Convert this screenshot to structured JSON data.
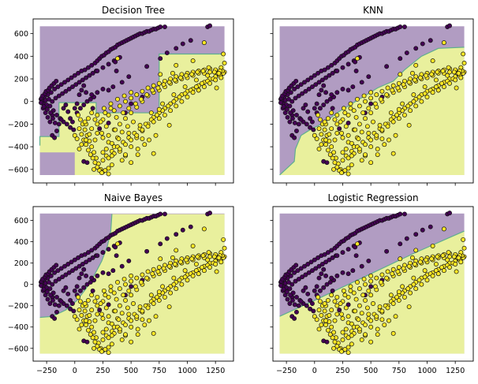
{
  "chart_data": [
    {
      "type": "scatter",
      "title": "Decision Tree",
      "xlim": [
        -370,
        1410
      ],
      "ylim": [
        -720,
        730
      ],
      "show_x_tick_labels": false,
      "show_y_tick_labels": true,
      "region_boundary": [
        [
          -310,
          -390
        ],
        [
          -310,
          -310
        ],
        [
          -140,
          -310
        ],
        [
          -140,
          -10
        ],
        [
          190,
          -10
        ],
        [
          190,
          -100
        ],
        [
          750,
          -100
        ],
        [
          750,
          420
        ],
        [
          1330,
          420
        ]
      ],
      "region_extra": [
        [
          0,
          -650
        ],
        [
          0,
          -450
        ],
        [
          -310,
          -450
        ],
        [
          -310,
          -650
        ]
      ]
    },
    {
      "type": "scatter",
      "title": "KNN",
      "xlim": [
        -370,
        1410
      ],
      "ylim": [
        -720,
        730
      ],
      "show_x_tick_labels": false,
      "show_y_tick_labels": false,
      "region_boundary": [
        [
          -310,
          -650
        ],
        [
          -180,
          -530
        ],
        [
          -170,
          -420
        ],
        [
          -120,
          -300
        ],
        [
          -40,
          -250
        ],
        [
          100,
          -180
        ],
        [
          200,
          -100
        ],
        [
          330,
          -20
        ],
        [
          430,
          40
        ],
        [
          560,
          120
        ],
        [
          700,
          180
        ],
        [
          800,
          280
        ],
        [
          950,
          400
        ],
        [
          1100,
          470
        ],
        [
          1330,
          480
        ]
      ]
    },
    {
      "type": "scatter",
      "title": "Naive Bayes",
      "xlim": [
        -370,
        1410
      ],
      "ylim": [
        -720,
        730
      ],
      "show_x_tick_labels": true,
      "show_y_tick_labels": true,
      "region_boundary": [
        [
          -310,
          -310
        ],
        [
          -200,
          -300
        ],
        [
          -80,
          -240
        ],
        [
          20,
          -150
        ],
        [
          100,
          -40
        ],
        [
          170,
          80
        ],
        [
          240,
          220
        ],
        [
          290,
          360
        ],
        [
          320,
          500
        ],
        [
          330,
          660
        ]
      ]
    },
    {
      "type": "scatter",
      "title": "Logistic Regression",
      "xlim": [
        -370,
        1410
      ],
      "ylim": [
        -720,
        730
      ],
      "show_x_tick_labels": true,
      "show_y_tick_labels": false,
      "region_boundary": [
        [
          -310,
          -300
        ],
        [
          0,
          -150
        ],
        [
          300,
          0
        ],
        [
          600,
          150
        ],
        [
          900,
          300
        ],
        [
          1200,
          440
        ],
        [
          1330,
          500
        ]
      ]
    }
  ],
  "shared": {
    "x_ticks": [
      -250,
      0,
      250,
      500,
      750,
      1000,
      1250
    ],
    "x_tick_labels": [
      "−250",
      "0",
      "250",
      "500",
      "750",
      "1000",
      "1250"
    ],
    "y_ticks": [
      -600,
      -400,
      -200,
      0,
      200,
      400,
      600
    ],
    "y_tick_labels": [
      "−600",
      "−400",
      "−200",
      "0",
      "200",
      "400",
      "600"
    ],
    "class_colors": {
      "class_0": "#440154",
      "class_1": "#fde725"
    },
    "region_colors": {
      "class_0": "#b19cc2",
      "class_1": "#e9f09d"
    },
    "boundary_color": "#5fae8f",
    "points_class_0": [
      [
        -300,
        20
      ],
      [
        -290,
        0
      ],
      [
        -280,
        -20
      ],
      [
        -270,
        40
      ],
      [
        -260,
        10
      ],
      [
        -250,
        -30
      ],
      [
        -240,
        60
      ],
      [
        -230,
        20
      ],
      [
        -220,
        -40
      ],
      [
        -210,
        80
      ],
      [
        -200,
        0
      ],
      [
        -190,
        -80
      ],
      [
        -180,
        110
      ],
      [
        -170,
        30
      ],
      [
        -160,
        -120
      ],
      [
        -150,
        130
      ],
      [
        -140,
        50
      ],
      [
        -130,
        -150
      ],
      [
        -120,
        150
      ],
      [
        -110,
        70
      ],
      [
        -100,
        -180
      ],
      [
        -90,
        170
      ],
      [
        -80,
        90
      ],
      [
        -70,
        -200
      ],
      [
        -60,
        190
      ],
      [
        -50,
        110
      ],
      [
        -40,
        -230
      ],
      [
        -30,
        210
      ],
      [
        -20,
        130
      ],
      [
        -10,
        -250
      ],
      [
        0,
        230
      ],
      [
        10,
        150
      ],
      [
        20,
        -100
      ],
      [
        30,
        250
      ],
      [
        40,
        170
      ],
      [
        50,
        -60
      ],
      [
        60,
        270
      ],
      [
        70,
        190
      ],
      [
        80,
        -30
      ],
      [
        90,
        280
      ],
      [
        100,
        210
      ],
      [
        110,
        0
      ],
      [
        120,
        300
      ],
      [
        130,
        230
      ],
      [
        140,
        20
      ],
      [
        150,
        320
      ],
      [
        160,
        250
      ],
      [
        170,
        40
      ],
      [
        180,
        340
      ],
      [
        190,
        270
      ],
      [
        200,
        360
      ],
      [
        220,
        380
      ],
      [
        240,
        400
      ],
      [
        260,
        410
      ],
      [
        280,
        430
      ],
      [
        300,
        440
      ],
      [
        320,
        460
      ],
      [
        340,
        470
      ],
      [
        360,
        480
      ],
      [
        380,
        500
      ],
      [
        400,
        510
      ],
      [
        420,
        520
      ],
      [
        440,
        530
      ],
      [
        460,
        540
      ],
      [
        480,
        550
      ],
      [
        500,
        560
      ],
      [
        520,
        570
      ],
      [
        540,
        580
      ],
      [
        560,
        590
      ],
      [
        580,
        600
      ],
      [
        600,
        600
      ],
      [
        620,
        610
      ],
      [
        640,
        620
      ],
      [
        660,
        620
      ],
      [
        680,
        630
      ],
      [
        700,
        640
      ],
      [
        720,
        640
      ],
      [
        740,
        650
      ],
      [
        760,
        660
      ],
      [
        800,
        660
      ],
      [
        -200,
        -300
      ],
      [
        -180,
        -320
      ],
      [
        -160,
        -260
      ],
      [
        -140,
        -200
      ],
      [
        -120,
        -160
      ],
      [
        -100,
        -60
      ],
      [
        -80,
        -30
      ],
      [
        -60,
        -90
      ],
      [
        -40,
        -150
      ],
      [
        -20,
        -180
      ],
      [
        0,
        -60
      ],
      [
        20,
        -20
      ],
      [
        40,
        60
      ],
      [
        60,
        100
      ],
      [
        80,
        140
      ],
      [
        -280,
        -60
      ],
      [
        -260,
        -100
      ],
      [
        -240,
        -140
      ],
      [
        -220,
        -180
      ],
      [
        -200,
        -120
      ],
      [
        -300,
        -10
      ],
      [
        -295,
        30
      ],
      [
        -285,
        50
      ],
      [
        -275,
        -45
      ],
      [
        -265,
        70
      ],
      [
        -255,
        90
      ],
      [
        -245,
        -70
      ],
      [
        -235,
        100
      ],
      [
        -225,
        120
      ],
      [
        -215,
        -100
      ],
      [
        -205,
        140
      ],
      [
        -195,
        -150
      ],
      [
        -185,
        160
      ],
      [
        -175,
        -190
      ],
      [
        -165,
        180
      ],
      [
        80,
        -530
      ],
      [
        110,
        -540
      ],
      [
        200,
        270
      ],
      [
        250,
        300
      ],
      [
        300,
        330
      ],
      [
        350,
        360
      ],
      [
        400,
        390
      ],
      [
        150,
        60
      ],
      [
        200,
        80
      ],
      [
        250,
        110
      ],
      [
        100,
        80
      ],
      [
        1180,
        660
      ],
      [
        1200,
        670
      ],
      [
        360,
        350
      ],
      [
        370,
        270
      ],
      [
        500,
        -20
      ],
      [
        600,
        40
      ],
      [
        450,
        -100
      ],
      [
        300,
        -190
      ],
      [
        220,
        -240
      ],
      [
        160,
        -60
      ],
      [
        300,
        100
      ],
      [
        340,
        130
      ],
      [
        420,
        170
      ],
      [
        480,
        220
      ],
      [
        640,
        310
      ],
      [
        760,
        380
      ],
      [
        820,
        430
      ],
      [
        900,
        470
      ],
      [
        960,
        510
      ],
      [
        1030,
        540
      ]
    ],
    "points_class_1": [
      [
        30,
        -120
      ],
      [
        50,
        -160
      ],
      [
        70,
        -200
      ],
      [
        90,
        -250
      ],
      [
        110,
        -300
      ],
      [
        130,
        -350
      ],
      [
        150,
        -400
      ],
      [
        170,
        -450
      ],
      [
        190,
        -500
      ],
      [
        210,
        -550
      ],
      [
        230,
        -600
      ],
      [
        250,
        -620
      ],
      [
        270,
        -610
      ],
      [
        300,
        -590
      ],
      [
        330,
        -560
      ],
      [
        200,
        -580
      ],
      [
        220,
        -610
      ],
      [
        240,
        -630
      ],
      [
        180,
        -540
      ],
      [
        160,
        -500
      ],
      [
        140,
        -470
      ],
      [
        120,
        -430
      ],
      [
        100,
        -380
      ],
      [
        80,
        -340
      ],
      [
        60,
        -290
      ],
      [
        40,
        -240
      ],
      [
        100,
        -200
      ],
      [
        150,
        -240
      ],
      [
        200,
        -280
      ],
      [
        250,
        -320
      ],
      [
        300,
        -360
      ],
      [
        350,
        -400
      ],
      [
        400,
        -440
      ],
      [
        450,
        -480
      ],
      [
        500,
        -400
      ],
      [
        550,
        -320
      ],
      [
        600,
        -260
      ],
      [
        650,
        -200
      ],
      [
        700,
        -140
      ],
      [
        750,
        -100
      ],
      [
        800,
        -60
      ],
      [
        850,
        -20
      ],
      [
        900,
        20
      ],
      [
        950,
        60
      ],
      [
        1000,
        90
      ],
      [
        1050,
        110
      ],
      [
        1100,
        140
      ],
      [
        1150,
        170
      ],
      [
        1200,
        200
      ],
      [
        1250,
        220
      ],
      [
        1300,
        240
      ],
      [
        1330,
        260
      ],
      [
        1320,
        250
      ],
      [
        1310,
        270
      ],
      [
        1290,
        230
      ],
      [
        1270,
        250
      ],
      [
        1230,
        200
      ],
      [
        1180,
        180
      ],
      [
        1130,
        160
      ],
      [
        1080,
        130
      ],
      [
        1030,
        100
      ],
      [
        980,
        70
      ],
      [
        930,
        40
      ],
      [
        880,
        0
      ],
      [
        830,
        -40
      ],
      [
        780,
        -80
      ],
      [
        730,
        -120
      ],
      [
        680,
        -160
      ],
      [
        630,
        -200
      ],
      [
        580,
        -240
      ],
      [
        530,
        -280
      ],
      [
        480,
        -320
      ],
      [
        430,
        -360
      ],
      [
        380,
        -400
      ],
      [
        330,
        -440
      ],
      [
        280,
        -480
      ],
      [
        250,
        -520
      ],
      [
        300,
        -500
      ],
      [
        350,
        -460
      ],
      [
        400,
        -420
      ],
      [
        450,
        -380
      ],
      [
        500,
        -340
      ],
      [
        550,
        -300
      ],
      [
        600,
        -250
      ],
      [
        650,
        -220
      ],
      [
        700,
        -180
      ],
      [
        750,
        -150
      ],
      [
        800,
        -120
      ],
      [
        850,
        -80
      ],
      [
        900,
        -40
      ],
      [
        950,
        0
      ],
      [
        1000,
        40
      ],
      [
        1050,
        80
      ],
      [
        1100,
        100
      ],
      [
        1150,
        130
      ],
      [
        1200,
        160
      ],
      [
        1250,
        190
      ],
      [
        1300,
        210
      ],
      [
        200,
        -200
      ],
      [
        250,
        -160
      ],
      [
        300,
        -120
      ],
      [
        350,
        -80
      ],
      [
        400,
        -40
      ],
      [
        450,
        0
      ],
      [
        500,
        30
      ],
      [
        550,
        60
      ],
      [
        600,
        90
      ],
      [
        650,
        120
      ],
      [
        700,
        140
      ],
      [
        750,
        160
      ],
      [
        800,
        180
      ],
      [
        850,
        200
      ],
      [
        900,
        220
      ],
      [
        950,
        240
      ],
      [
        1000,
        250
      ],
      [
        1050,
        260
      ],
      [
        1100,
        270
      ],
      [
        1150,
        280
      ],
      [
        1200,
        290
      ],
      [
        150,
        -100
      ],
      [
        200,
        -120
      ],
      [
        260,
        -60
      ],
      [
        320,
        -20
      ],
      [
        380,
        20
      ],
      [
        440,
        50
      ],
      [
        500,
        80
      ],
      [
        300,
        -300
      ],
      [
        350,
        -250
      ],
      [
        400,
        -200
      ],
      [
        450,
        -150
      ],
      [
        500,
        -100
      ],
      [
        550,
        -50
      ],
      [
        600,
        0
      ],
      [
        650,
        50
      ],
      [
        700,
        80
      ],
      [
        750,
        100
      ],
      [
        800,
        130
      ],
      [
        850,
        160
      ],
      [
        900,
        180
      ],
      [
        950,
        200
      ],
      [
        1000,
        210
      ],
      [
        1050,
        230
      ],
      [
        1100,
        250
      ],
      [
        1150,
        250
      ],
      [
        1200,
        260
      ],
      [
        1250,
        280
      ],
      [
        1300,
        300
      ],
      [
        1320,
        420
      ],
      [
        1330,
        340
      ],
      [
        1260,
        120
      ],
      [
        1100,
        100
      ],
      [
        900,
        320
      ],
      [
        870,
        250
      ],
      [
        750,
        -70
      ],
      [
        600,
        -330
      ],
      [
        700,
        -460
      ],
      [
        500,
        -540
      ],
      [
        420,
        -520
      ],
      [
        330,
        -480
      ],
      [
        100,
        -340
      ],
      [
        60,
        -380
      ],
      [
        20,
        -330
      ],
      [
        0,
        -300
      ],
      [
        40,
        -420
      ],
      [
        560,
        -470
      ],
      [
        620,
        -380
      ],
      [
        660,
        -340
      ],
      [
        720,
        -300
      ],
      [
        840,
        -210
      ],
      [
        520,
        -180
      ],
      [
        470,
        -220
      ],
      [
        420,
        -270
      ],
      [
        380,
        -320
      ],
      [
        360,
        -250
      ],
      [
        280,
        -220
      ],
      [
        240,
        -280
      ],
      [
        180,
        -340
      ],
      [
        130,
        -290
      ],
      [
        90,
        -180
      ],
      [
        120,
        -150
      ],
      [
        180,
        -160
      ],
      [
        230,
        -180
      ],
      [
        270,
        -100
      ],
      [
        320,
        -60
      ],
      [
        370,
        -140
      ],
      [
        430,
        -100
      ],
      [
        480,
        -60
      ],
      [
        540,
        -20
      ],
      [
        590,
        20
      ],
      [
        640,
        60
      ],
      [
        690,
        100
      ],
      [
        740,
        120
      ],
      [
        790,
        150
      ],
      [
        840,
        170
      ],
      [
        890,
        190
      ],
      [
        940,
        210
      ],
      [
        990,
        230
      ],
      [
        1040,
        240
      ],
      [
        1090,
        260
      ],
      [
        1140,
        270
      ],
      [
        1190,
        300
      ],
      [
        1240,
        260
      ],
      [
        1290,
        270
      ],
      [
        380,
        380
      ],
      [
        760,
        240
      ],
      [
        1050,
        360
      ],
      [
        1150,
        520
      ],
      [
        560,
        -420
      ],
      [
        450,
        -470
      ],
      [
        250,
        -450
      ],
      [
        170,
        -600
      ],
      [
        300,
        -640
      ],
      [
        280,
        -420
      ],
      [
        330,
        -370
      ],
      [
        390,
        -330
      ],
      [
        480,
        -280
      ],
      [
        580,
        -210
      ],
      [
        680,
        -100
      ],
      [
        780,
        -20
      ],
      [
        880,
        60
      ],
      [
        980,
        130
      ],
      [
        1080,
        190
      ],
      [
        1180,
        230
      ],
      [
        1280,
        250
      ]
    ]
  }
}
